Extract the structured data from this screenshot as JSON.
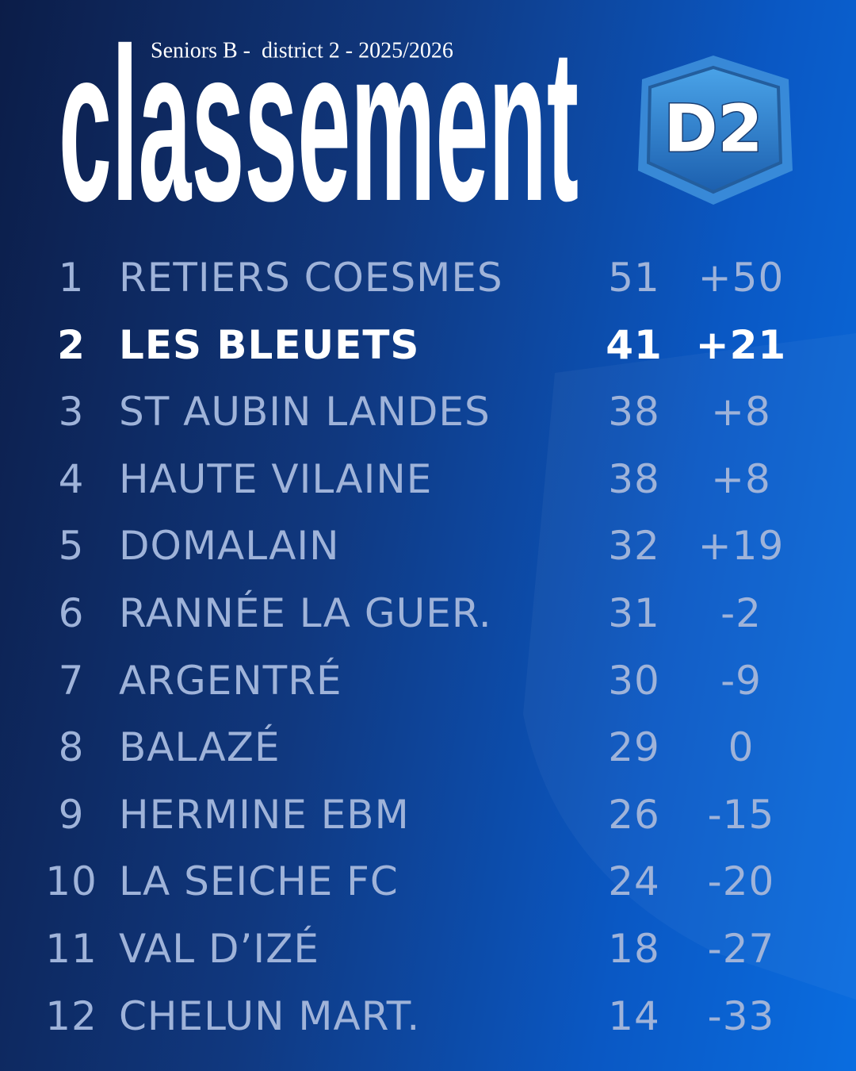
{
  "header": {
    "subtitle": "Seniors B -  district 2 - 2025/2026",
    "title": "classement",
    "badge": "D2"
  },
  "table": {
    "rows": [
      [
        "1",
        "RETIERS COESMES",
        "51",
        "+50"
      ],
      [
        "2",
        "LES BLEUETS",
        "41",
        "+21"
      ],
      [
        "3",
        "ST AUBIN LANDES",
        "38",
        "+8"
      ],
      [
        "4",
        "HAUTE VILAINE",
        "38",
        "+8"
      ],
      [
        "5",
        "DOMALAIN",
        "32",
        "+19"
      ],
      [
        "6",
        "RANNÉE LA GUER.",
        "31",
        "-2"
      ],
      [
        "7",
        "ARGENTRÉ",
        "30",
        "-9"
      ],
      [
        "8",
        "BALAZÉ",
        "29",
        "0"
      ],
      [
        "9",
        "HERMINE EBM",
        "26",
        "-15"
      ],
      [
        "10",
        "LA SEICHE FC",
        "24",
        "-20"
      ],
      [
        "11",
        "VAL D’IZÉ",
        "18",
        "-27"
      ],
      [
        "12",
        "CHELUN MART.",
        "14",
        "-33"
      ]
    ]
  }
}
